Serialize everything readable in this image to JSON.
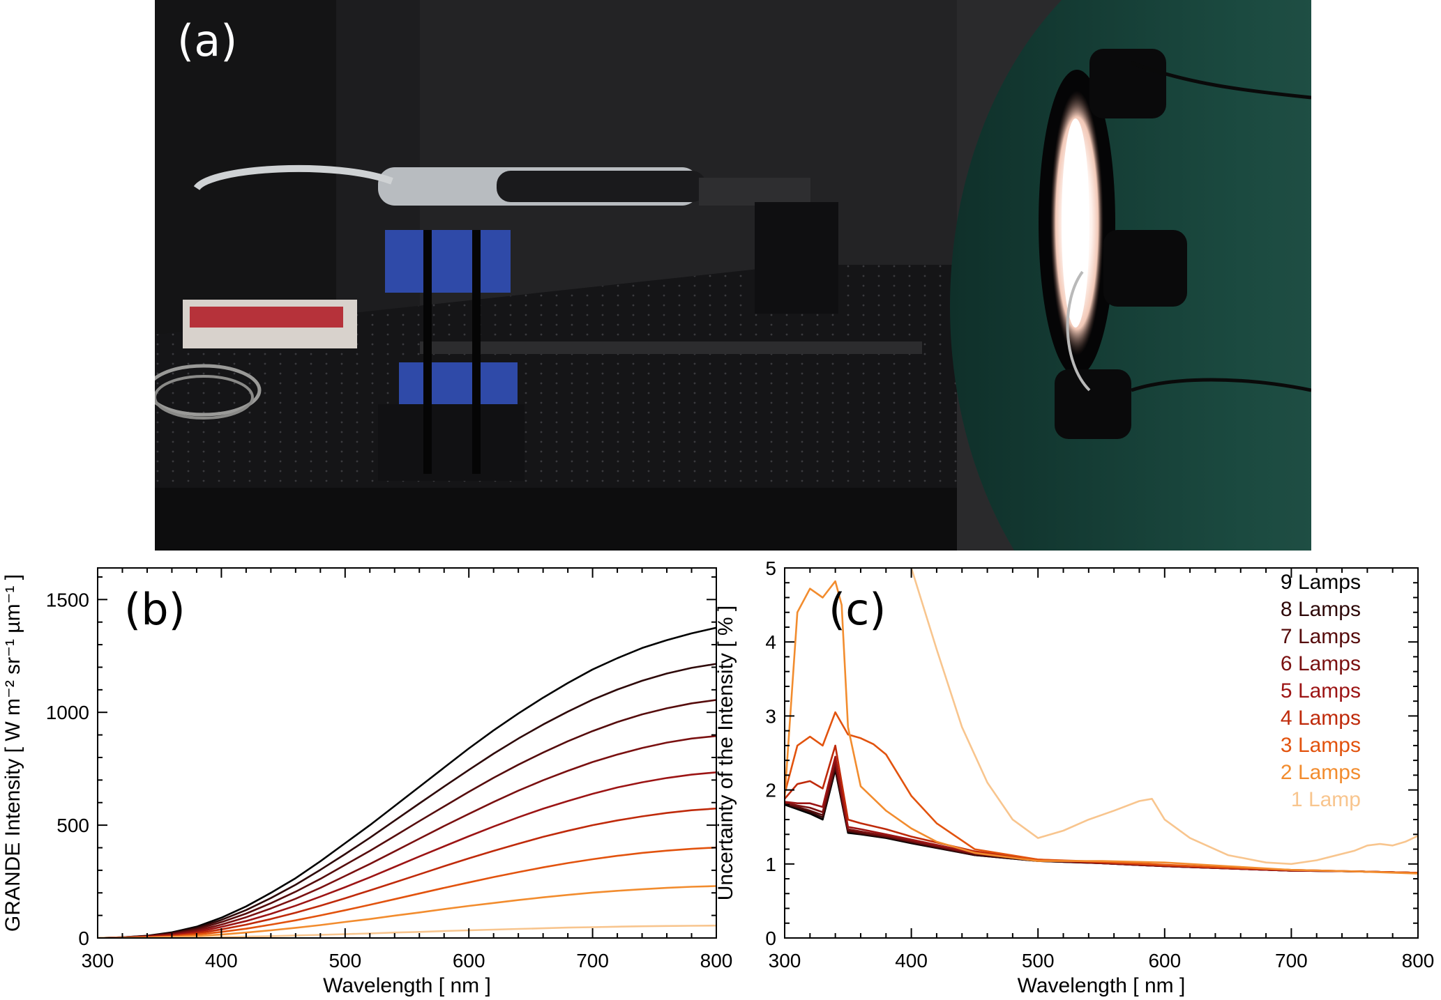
{
  "panels": {
    "a": {
      "label": "(a)"
    },
    "b": {
      "label": "(b)"
    },
    "c": {
      "label": "(c)"
    }
  },
  "chart_data": [
    {
      "type": "line",
      "panel": "b",
      "title": "",
      "xlabel": "Wavelength [ nm ]",
      "ylabel": "GRANDE Intensity [ W m⁻² sr⁻¹ µm⁻¹ ]",
      "xlim": [
        300,
        800
      ],
      "ylim": [
        0,
        1640
      ],
      "xticks": [
        300,
        400,
        500,
        600,
        700,
        800
      ],
      "yticks": [
        0,
        500,
        1000,
        1500
      ],
      "grid": false,
      "x": [
        300,
        320,
        340,
        360,
        380,
        400,
        420,
        440,
        460,
        480,
        500,
        520,
        540,
        560,
        580,
        600,
        620,
        640,
        660,
        680,
        700,
        720,
        740,
        760,
        780,
        800
      ],
      "series": [
        {
          "name": "9 Lamps",
          "color": "#000000",
          "values": [
            0,
            3,
            10,
            25,
            50,
            90,
            140,
            200,
            265,
            340,
            420,
            500,
            585,
            670,
            755,
            840,
            920,
            995,
            1065,
            1130,
            1190,
            1240,
            1285,
            1320,
            1350,
            1375
          ]
        },
        {
          "name": "8 Lamps",
          "color": "#2e0808",
          "values": [
            0,
            3,
            9,
            22,
            45,
            80,
            124,
            177,
            236,
            302,
            372,
            444,
            520,
            596,
            671,
            745,
            817,
            884,
            946,
            1003,
            1056,
            1101,
            1140,
            1172,
            1197,
            1215
          ]
        },
        {
          "name": "7 Lamps",
          "color": "#560c0c",
          "values": [
            0,
            3,
            8,
            19,
            39,
            70,
            108,
            154,
            205,
            262,
            324,
            386,
            452,
            518,
            583,
            648,
            710,
            768,
            822,
            872,
            917,
            957,
            991,
            1018,
            1040,
            1055
          ]
        },
        {
          "name": "6 Lamps",
          "color": "#7a1010",
          "values": [
            0,
            2,
            7,
            16,
            33,
            59,
            92,
            131,
            174,
            222,
            275,
            328,
            384,
            440,
            496,
            550,
            603,
            653,
            699,
            741,
            780,
            813,
            842,
            866,
            884,
            895
          ]
        },
        {
          "name": "5 Lamps",
          "color": "#9c1414",
          "values": [
            0,
            2,
            6,
            13,
            27,
            49,
            75,
            107,
            143,
            183,
            225,
            269,
            315,
            361,
            406,
            451,
            494,
            535,
            573,
            607,
            639,
            667,
            690,
            709,
            724,
            734
          ]
        },
        {
          "name": "4 Lamps",
          "color": "#bf2a0a",
          "values": [
            0,
            2,
            4,
            10,
            21,
            38,
            59,
            84,
            112,
            143,
            176,
            211,
            246,
            282,
            318,
            353,
            386,
            418,
            448,
            475,
            500,
            521,
            539,
            554,
            566,
            574
          ]
        },
        {
          "name": "3 Lamps",
          "color": "#e2530e",
          "values": [
            0,
            1,
            3,
            7,
            15,
            27,
            41,
            59,
            78,
            100,
            123,
            147,
            172,
            197,
            222,
            246,
            270,
            292,
            313,
            332,
            349,
            364,
            377,
            387,
            395,
            401
          ]
        },
        {
          "name": "2 Lamps",
          "color": "#f28c2e",
          "values": [
            0,
            1,
            2,
            4,
            9,
            15,
            24,
            34,
            45,
            57,
            71,
            84,
            99,
            113,
            128,
            142,
            155,
            168,
            180,
            191,
            201,
            209,
            216,
            222,
            227,
            230
          ]
        },
        {
          "name": "1 Lamp",
          "color": "#f8c58e",
          "values": [
            0,
            0,
            0,
            1,
            2,
            4,
            6,
            8,
            11,
            14,
            17,
            20,
            24,
            27,
            31,
            34,
            37,
            40,
            43,
            46,
            48,
            50,
            52,
            53,
            54,
            55
          ]
        }
      ]
    },
    {
      "type": "line",
      "panel": "c",
      "title": "",
      "xlabel": "Wavelength [ nm ]",
      "ylabel": "Uncertainty of the Intensity [ % ]",
      "xlim": [
        300,
        800
      ],
      "ylim": [
        0,
        5
      ],
      "xticks": [
        300,
        400,
        500,
        600,
        700,
        800
      ],
      "yticks": [
        0,
        1,
        2,
        3,
        4,
        5
      ],
      "grid": false,
      "legend": "top-right",
      "series": [
        {
          "name": "9 Lamps",
          "color": "#000000",
          "x": [
            300,
            310,
            320,
            330,
            340,
            350,
            360,
            380,
            400,
            450,
            500,
            550,
            600,
            650,
            700,
            750,
            800
          ],
          "values": [
            1.8,
            1.74,
            1.68,
            1.6,
            2.27,
            1.42,
            1.4,
            1.35,
            1.28,
            1.12,
            1.04,
            1.01,
            0.97,
            0.94,
            0.91,
            0.9,
            0.88
          ]
        },
        {
          "name": "8 Lamps",
          "color": "#2e0808",
          "x": [
            300,
            310,
            320,
            330,
            340,
            350,
            360,
            380,
            400,
            450,
            500,
            550,
            600,
            650,
            700,
            750,
            800
          ],
          "values": [
            1.81,
            1.76,
            1.7,
            1.63,
            2.3,
            1.44,
            1.41,
            1.36,
            1.29,
            1.12,
            1.04,
            1.01,
            0.97,
            0.94,
            0.91,
            0.9,
            0.88
          ]
        },
        {
          "name": "7 Lamps",
          "color": "#560c0c",
          "x": [
            300,
            310,
            320,
            330,
            340,
            350,
            360,
            380,
            400,
            450,
            500,
            550,
            600,
            650,
            700,
            750,
            800
          ],
          "values": [
            1.82,
            1.77,
            1.72,
            1.66,
            2.33,
            1.45,
            1.42,
            1.37,
            1.3,
            1.13,
            1.05,
            1.01,
            0.97,
            0.94,
            0.91,
            0.9,
            0.88
          ]
        },
        {
          "name": "6 Lamps",
          "color": "#7a1010",
          "x": [
            300,
            310,
            320,
            330,
            340,
            350,
            360,
            380,
            400,
            450,
            500,
            550,
            600,
            650,
            700,
            750,
            800
          ],
          "values": [
            1.83,
            1.79,
            1.76,
            1.7,
            2.38,
            1.47,
            1.44,
            1.38,
            1.31,
            1.14,
            1.05,
            1.01,
            0.97,
            0.94,
            0.91,
            0.9,
            0.88
          ]
        },
        {
          "name": "5 Lamps",
          "color": "#9c1414",
          "x": [
            300,
            310,
            320,
            330,
            340,
            350,
            360,
            380,
            400,
            450,
            500,
            550,
            600,
            650,
            700,
            750,
            800
          ],
          "values": [
            1.84,
            1.82,
            1.82,
            1.77,
            2.45,
            1.5,
            1.47,
            1.4,
            1.33,
            1.15,
            1.05,
            1.02,
            0.98,
            0.94,
            0.91,
            0.9,
            0.88
          ]
        },
        {
          "name": "4 Lamps",
          "color": "#bf2a0a",
          "x": [
            300,
            310,
            320,
            330,
            340,
            350,
            360,
            380,
            400,
            450,
            500,
            550,
            600,
            650,
            700,
            750,
            800
          ],
          "values": [
            1.88,
            2.08,
            2.12,
            2.02,
            2.6,
            1.6,
            1.55,
            1.47,
            1.37,
            1.17,
            1.06,
            1.02,
            0.98,
            0.95,
            0.92,
            0.9,
            0.88
          ]
        },
        {
          "name": "3 Lamps",
          "color": "#e2530e",
          "x": [
            300,
            310,
            320,
            330,
            340,
            350,
            360,
            370,
            380,
            400,
            420,
            450,
            500,
            550,
            600,
            650,
            700,
            750,
            800
          ],
          "values": [
            1.95,
            2.6,
            2.72,
            2.6,
            3.05,
            2.75,
            2.7,
            2.62,
            2.48,
            1.92,
            1.55,
            1.2,
            1.06,
            1.03,
            0.99,
            0.95,
            0.92,
            0.9,
            0.88
          ]
        },
        {
          "name": "2 Lamps",
          "color": "#f28c2e",
          "x": [
            300,
            310,
            320,
            330,
            340,
            345,
            350,
            360,
            380,
            400,
            420,
            450,
            500,
            550,
            600,
            650,
            700,
            750,
            800
          ],
          "values": [
            1.9,
            4.4,
            4.72,
            4.6,
            4.82,
            4.5,
            2.85,
            2.05,
            1.72,
            1.48,
            1.3,
            1.15,
            1.04,
            1.04,
            1.02,
            0.97,
            0.92,
            0.9,
            0.87
          ]
        },
        {
          "name": "1 Lamp",
          "color": "#f8c58e",
          "x": [
            400,
            420,
            440,
            460,
            480,
            500,
            520,
            540,
            560,
            580,
            590,
            600,
            620,
            650,
            680,
            700,
            720,
            750,
            760,
            770,
            780,
            790,
            800
          ],
          "values": [
            5.0,
            3.9,
            2.85,
            2.1,
            1.6,
            1.35,
            1.45,
            1.6,
            1.72,
            1.85,
            1.88,
            1.6,
            1.35,
            1.12,
            1.02,
            1.0,
            1.05,
            1.18,
            1.25,
            1.27,
            1.25,
            1.3,
            1.38
          ]
        }
      ]
    }
  ]
}
